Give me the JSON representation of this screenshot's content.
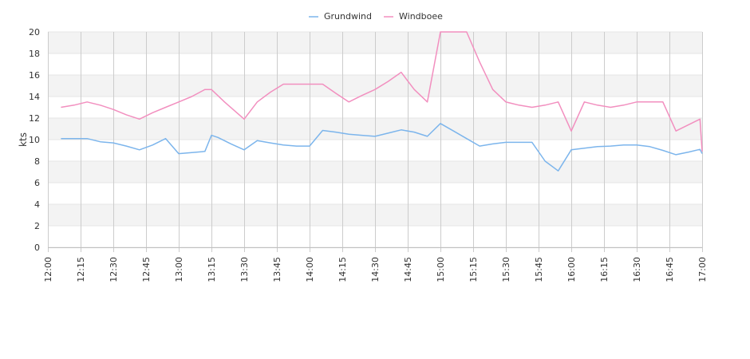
{
  "chart_data": {
    "type": "line",
    "ylabel": "kts",
    "ylim": [
      0,
      20
    ],
    "y_ticks": [
      "0",
      "2",
      "4",
      "6",
      "8",
      "10",
      "12",
      "14",
      "16",
      "18",
      "20"
    ],
    "x_ticks": [
      "12:00",
      "12:15",
      "12:30",
      "12:45",
      "13:00",
      "13:15",
      "13:30",
      "13:45",
      "14:00",
      "14:15",
      "14:30",
      "14:45",
      "15:00",
      "15:15",
      "15:30",
      "15:45",
      "16:00",
      "16:15",
      "16:30",
      "16:45",
      "17:00"
    ],
    "x_range": [
      "12:00",
      "17:00"
    ],
    "grid": "horizontal bands and vertical lines",
    "legend_position": "top-center",
    "series": [
      {
        "name": "Grundwind",
        "color": "#7cb5ec",
        "points": [
          [
            "12:06",
            10.1
          ],
          [
            "12:12",
            10.1
          ],
          [
            "12:18",
            10.1
          ],
          [
            "12:24",
            9.8
          ],
          [
            "12:30",
            9.7
          ],
          [
            "12:36",
            9.4
          ],
          [
            "12:42",
            9.05
          ],
          [
            "12:48",
            9.5
          ],
          [
            "12:54",
            10.1
          ],
          [
            "13:00",
            8.7
          ],
          [
            "13:06",
            8.8
          ],
          [
            "13:12",
            8.9
          ],
          [
            "13:15",
            10.4
          ],
          [
            "13:18",
            10.2
          ],
          [
            "13:24",
            9.6
          ],
          [
            "13:30",
            9.05
          ],
          [
            "13:36",
            9.9
          ],
          [
            "13:42",
            9.7
          ],
          [
            "13:48",
            9.5
          ],
          [
            "13:54",
            9.4
          ],
          [
            "14:00",
            9.4
          ],
          [
            "14:06",
            10.85
          ],
          [
            "14:12",
            10.7
          ],
          [
            "14:18",
            10.5
          ],
          [
            "14:24",
            10.4
          ],
          [
            "14:30",
            10.3
          ],
          [
            "14:36",
            10.6
          ],
          [
            "14:42",
            10.9
          ],
          [
            "14:48",
            10.7
          ],
          [
            "14:54",
            10.3
          ],
          [
            "15:00",
            11.5
          ],
          [
            "15:06",
            10.8
          ],
          [
            "15:12",
            10.1
          ],
          [
            "15:18",
            9.4
          ],
          [
            "15:24",
            9.6
          ],
          [
            "15:30",
            9.75
          ],
          [
            "15:36",
            9.75
          ],
          [
            "15:42",
            9.75
          ],
          [
            "15:48",
            8.0
          ],
          [
            "15:54",
            7.1
          ],
          [
            "16:00",
            9.05
          ],
          [
            "16:06",
            9.2
          ],
          [
            "16:12",
            9.35
          ],
          [
            "16:18",
            9.4
          ],
          [
            "16:24",
            9.5
          ],
          [
            "16:30",
            9.5
          ],
          [
            "16:36",
            9.35
          ],
          [
            "16:42",
            9.0
          ],
          [
            "16:48",
            8.6
          ],
          [
            "16:54",
            8.85
          ],
          [
            "16:59",
            9.1
          ],
          [
            "17:00",
            8.7
          ]
        ]
      },
      {
        "name": "Windboee",
        "color": "#f28fbf",
        "points": [
          [
            "12:06",
            13.0
          ],
          [
            "12:12",
            13.2
          ],
          [
            "12:18",
            13.5
          ],
          [
            "12:24",
            13.2
          ],
          [
            "12:30",
            12.8
          ],
          [
            "12:36",
            12.3
          ],
          [
            "12:42",
            11.9
          ],
          [
            "12:48",
            12.5
          ],
          [
            "12:54",
            13.0
          ],
          [
            "13:00",
            13.5
          ],
          [
            "13:06",
            14.0
          ],
          [
            "13:12",
            14.65
          ],
          [
            "13:15",
            14.65
          ],
          [
            "13:21",
            13.5
          ],
          [
            "13:30",
            11.9
          ],
          [
            "13:36",
            13.5
          ],
          [
            "13:42",
            14.4
          ],
          [
            "13:48",
            15.15
          ],
          [
            "13:54",
            15.15
          ],
          [
            "14:00",
            15.15
          ],
          [
            "14:06",
            15.15
          ],
          [
            "14:12",
            14.3
          ],
          [
            "14:18",
            13.5
          ],
          [
            "14:24",
            14.1
          ],
          [
            "14:30",
            14.65
          ],
          [
            "14:36",
            15.4
          ],
          [
            "14:42",
            16.25
          ],
          [
            "14:48",
            14.65
          ],
          [
            "14:54",
            13.5
          ],
          [
            "15:00",
            20.0
          ],
          [
            "15:06",
            20.0
          ],
          [
            "15:12",
            20.0
          ],
          [
            "15:18",
            17.2
          ],
          [
            "15:24",
            14.65
          ],
          [
            "15:30",
            13.5
          ],
          [
            "15:36",
            13.2
          ],
          [
            "15:42",
            13.0
          ],
          [
            "15:48",
            13.2
          ],
          [
            "15:54",
            13.5
          ],
          [
            "16:00",
            10.8
          ],
          [
            "16:06",
            13.5
          ],
          [
            "16:12",
            13.2
          ],
          [
            "16:18",
            13.0
          ],
          [
            "16:24",
            13.2
          ],
          [
            "16:30",
            13.5
          ],
          [
            "16:36",
            13.5
          ],
          [
            "16:42",
            13.5
          ],
          [
            "16:48",
            10.8
          ],
          [
            "16:54",
            11.4
          ],
          [
            "16:59",
            11.9
          ],
          [
            "17:00",
            8.9
          ]
        ]
      }
    ]
  }
}
